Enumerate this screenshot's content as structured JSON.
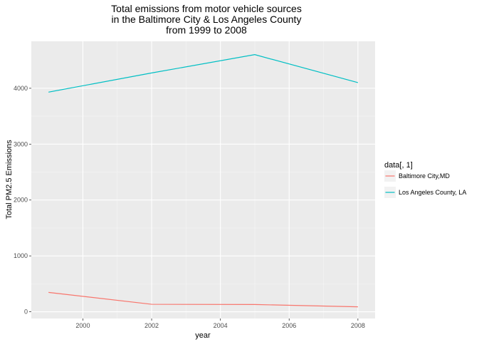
{
  "chart_data": {
    "type": "line",
    "title_lines": [
      "Total emissions from motor vehicle sources",
      "in the Baltimore City & Los Angeles County",
      "from 1999 to 2008"
    ],
    "xlabel": "year",
    "ylabel": "Total PM2.5 Emissions",
    "x": [
      1999,
      2002,
      2005,
      2008
    ],
    "xlim": [
      1998.5,
      2008.5
    ],
    "ylim": [
      -120,
      4840
    ],
    "x_ticks": [
      2000,
      2002,
      2004,
      2006,
      2008
    ],
    "y_ticks": [
      0,
      1000,
      2000,
      3000,
      4000
    ],
    "x_tick_labels": [
      "2000",
      "2002",
      "2004",
      "2006",
      "2008"
    ],
    "y_tick_labels": [
      "0",
      "1000",
      "2000",
      "3000",
      "4000"
    ],
    "grid": true,
    "legend": {
      "title": "data[, 1]",
      "position": "right"
    },
    "series": [
      {
        "name": "Baltimore City,MD",
        "color": "#F8766D",
        "values": [
          347,
          134,
          130,
          89
        ]
      },
      {
        "name": "Los Angeles County, LA",
        "color": "#00BFC4",
        "values": [
          3931,
          4274,
          4602,
          4101
        ]
      }
    ]
  }
}
